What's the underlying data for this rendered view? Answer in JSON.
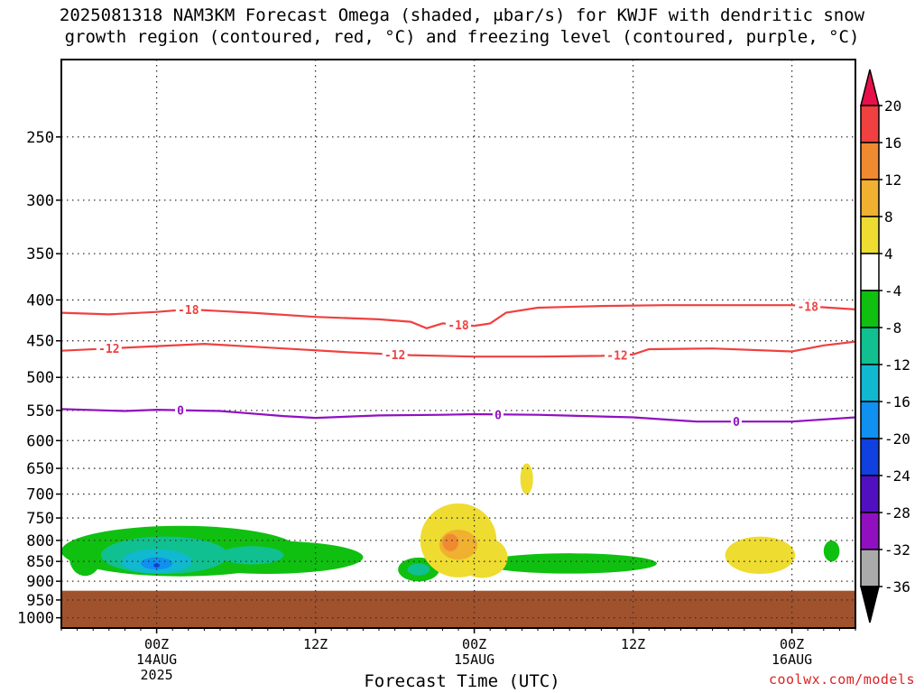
{
  "title_line1": "2025081318 NAM3KM Forecast Omega (shaded, μbar/s) for KWJF with dendritic snow",
  "title_line2": "growth region (contoured, red, °C) and freezing level (contoured, purple, °C)",
  "credit": "coolwx.com/models",
  "chart_data": {
    "type": "time-height-contour",
    "xlabel": "Forecast Time (UTC)",
    "x_range_hours": [
      -6,
      44
    ],
    "x_ticks": [
      {
        "hour": 0,
        "lines": [
          "00Z",
          "14AUG",
          "2025"
        ]
      },
      {
        "hour": 10,
        "lines": [
          "12Z"
        ]
      },
      {
        "hour": 20,
        "lines": [
          "00Z",
          "15AUG"
        ]
      },
      {
        "hour": 30,
        "lines": [
          "12Z"
        ]
      },
      {
        "hour": 40,
        "lines": [
          "00Z",
          "16AUG"
        ]
      }
    ],
    "y_axis": {
      "unit": "hPa",
      "log_scale": true,
      "range": [
        1030,
        200
      ],
      "ticks": [
        250,
        300,
        350,
        400,
        450,
        500,
        550,
        600,
        650,
        700,
        750,
        800,
        850,
        900,
        950,
        1000
      ]
    },
    "grid": "dotted",
    "colorbar": {
      "labels": [
        "20",
        "16",
        "12",
        "8",
        "4",
        "-4",
        "-8",
        "-12",
        "-16",
        "-20",
        "-24",
        "-28",
        "-32",
        "-36"
      ],
      "colors": [
        "#e8104a",
        "#f04040",
        "#f08a30",
        "#f0b030",
        "#eedc30",
        "#ffffff",
        "#10c010",
        "#10c090",
        "#10b8d0",
        "#1090f0",
        "#1040e0",
        "#5010c0",
        "#9010c0",
        "#aaaaaa",
        "#000000"
      ]
    },
    "contours": [
      {
        "name": "-18",
        "color": "#f04040",
        "label": "-18",
        "points": [
          [
            -6,
            415
          ],
          [
            -3,
            417
          ],
          [
            0,
            414
          ],
          [
            2,
            411
          ],
          [
            6,
            415
          ],
          [
            10,
            420
          ],
          [
            14,
            423
          ],
          [
            16,
            426
          ],
          [
            17,
            434
          ],
          [
            18,
            428
          ],
          [
            20,
            431
          ],
          [
            21,
            428
          ],
          [
            22,
            415
          ],
          [
            24,
            409
          ],
          [
            28,
            407
          ],
          [
            32,
            406
          ],
          [
            36,
            406
          ],
          [
            40,
            406
          ],
          [
            44,
            411
          ]
        ],
        "label_hours": [
          2,
          19,
          41
        ]
      },
      {
        "name": "-12",
        "color": "#f04040",
        "label": "-12",
        "points": [
          [
            -6,
            463
          ],
          [
            -3,
            460
          ],
          [
            0,
            457
          ],
          [
            3,
            454
          ],
          [
            8,
            460
          ],
          [
            12,
            465
          ],
          [
            16,
            469
          ],
          [
            20,
            471
          ],
          [
            24,
            471
          ],
          [
            28,
            470
          ],
          [
            30,
            468
          ],
          [
            31,
            461
          ],
          [
            35,
            460
          ],
          [
            40,
            464
          ],
          [
            42,
            456
          ],
          [
            44,
            451
          ]
        ],
        "label_hours": [
          -3,
          15,
          29
        ]
      },
      {
        "name": "0",
        "color": "#9010c0",
        "label": "0",
        "points": [
          [
            -6,
            548
          ],
          [
            -2,
            551
          ],
          [
            0,
            549
          ],
          [
            4,
            551
          ],
          [
            8,
            559
          ],
          [
            10,
            562
          ],
          [
            14,
            558
          ],
          [
            18,
            557
          ],
          [
            20,
            556
          ],
          [
            24,
            557
          ],
          [
            30,
            561
          ],
          [
            34,
            568
          ],
          [
            40,
            568
          ],
          [
            44,
            561
          ]
        ],
        "label_hours": [
          1.5,
          21.5,
          36.5
        ]
      }
    ],
    "shaded_regions": [
      {
        "value": -4,
        "color": "#10c010",
        "center": [
          1.5,
          825
        ],
        "rx_hours": 7.5,
        "ry_hpa": 60
      },
      {
        "value": -4,
        "color": "#10c010",
        "center": [
          7,
          840
        ],
        "rx_hours": 6,
        "ry_hpa": 40
      },
      {
        "value": -4,
        "color": "#10c010",
        "center": [
          -4.5,
          840
        ],
        "rx_hours": 1,
        "ry_hpa": 45
      },
      {
        "value": -4,
        "color": "#10c010",
        "center": [
          16.5,
          870
        ],
        "rx_hours": 1.3,
        "ry_hpa": 30
      },
      {
        "value": -4,
        "color": "#10c010",
        "center": [
          26,
          855
        ],
        "rx_hours": 5.5,
        "ry_hpa": 25
      },
      {
        "value": -4,
        "color": "#10c010",
        "center": [
          42.5,
          825
        ],
        "rx_hours": 0.5,
        "ry_hpa": 25
      },
      {
        "value": -8,
        "color": "#10c090",
        "center": [
          0.5,
          835
        ],
        "rx_hours": 4,
        "ry_hpa": 45
      },
      {
        "value": -8,
        "color": "#10c090",
        "center": [
          16.5,
          870
        ],
        "rx_hours": 0.7,
        "ry_hpa": 15
      },
      {
        "value": -8,
        "color": "#10c090",
        "center": [
          6,
          835
        ],
        "rx_hours": 2,
        "ry_hpa": 22
      },
      {
        "value": -12,
        "color": "#10b8d0",
        "center": [
          0,
          850
        ],
        "rx_hours": 2.2,
        "ry_hpa": 30
      },
      {
        "value": -16,
        "color": "#1090f0",
        "center": [
          0,
          855
        ],
        "rx_hours": 1,
        "ry_hpa": 15
      },
      {
        "value": -20,
        "color": "#1040e0",
        "center": [
          0,
          860
        ],
        "rx_hours": 0.2,
        "ry_hpa": 5
      },
      {
        "value": 4,
        "color": "#eedc30",
        "center": [
          19,
          800
        ],
        "rx_hours": 2.4,
        "ry_hpa": 85
      },
      {
        "value": 4,
        "color": "#eedc30",
        "center": [
          20.5,
          840
        ],
        "rx_hours": 1.6,
        "ry_hpa": 50
      },
      {
        "value": 4,
        "color": "#eedc30",
        "center": [
          23.3,
          670
        ],
        "rx_hours": 0.4,
        "ry_hpa": 30
      },
      {
        "value": 4,
        "color": "#eedc30",
        "center": [
          38,
          835
        ],
        "rx_hours": 2.2,
        "ry_hpa": 45
      },
      {
        "value": 8,
        "color": "#f0b030",
        "center": [
          19,
          810
        ],
        "rx_hours": 1.2,
        "ry_hpa": 35
      },
      {
        "value": 12,
        "color": "#f08a30",
        "center": [
          18.5,
          805
        ],
        "rx_hours": 0.5,
        "ry_hpa": 20
      }
    ],
    "terrain": {
      "color": "#a0522d",
      "surface_hpa": 925
    }
  }
}
